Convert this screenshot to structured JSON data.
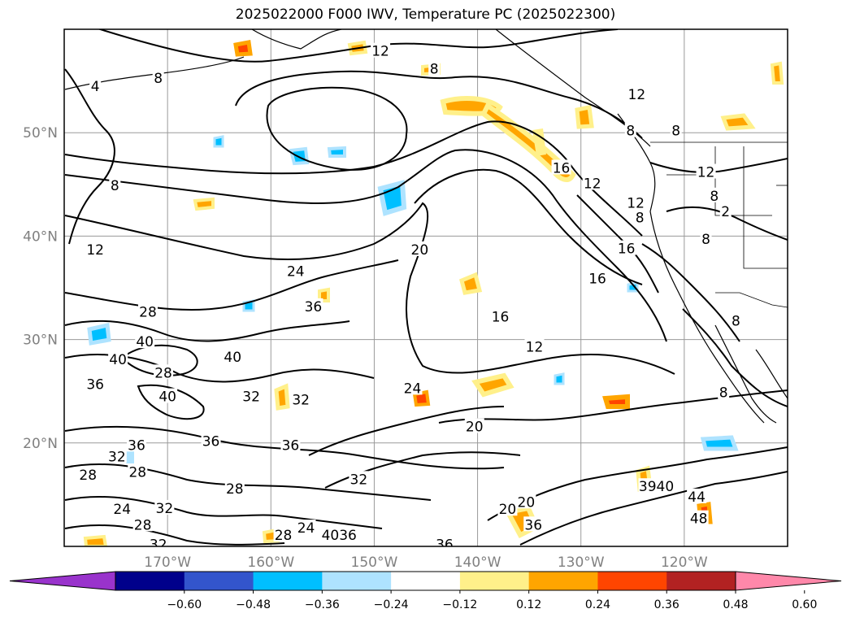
{
  "title": "2025022000 F000 IWV, Temperature PC (2025022300)",
  "map": {
    "lon_range": [
      -180,
      -110
    ],
    "lat_range": [
      10,
      60
    ],
    "lat_labels": [
      {
        "lat": 50,
        "text": "50°N"
      },
      {
        "lat": 40,
        "text": "40°N"
      },
      {
        "lat": 30,
        "text": "30°N"
      },
      {
        "lat": 20,
        "text": "20°N"
      }
    ],
    "lon_labels": [
      {
        "lon": -170,
        "text": "170°W"
      },
      {
        "lon": -160,
        "text": "160°W"
      },
      {
        "lon": -150,
        "text": "150°W"
      },
      {
        "lon": -140,
        "text": "140°W"
      },
      {
        "lon": -130,
        "text": "130°W"
      },
      {
        "lon": -120,
        "text": "120°W"
      }
    ],
    "grid": true,
    "contour_labels": [
      {
        "text": "8",
        "lon": -170.9,
        "lat": 55.3
      },
      {
        "text": "4",
        "lon": -177,
        "lat": 54.5
      },
      {
        "text": "12",
        "lon": -149.4,
        "lat": 57.9
      },
      {
        "text": "8",
        "lon": -144.2,
        "lat": 56.2
      },
      {
        "text": "8",
        "lon": -175.1,
        "lat": 44.9
      },
      {
        "text": "12",
        "lon": -177,
        "lat": 38.7
      },
      {
        "text": "24",
        "lon": -157.6,
        "lat": 36.6
      },
      {
        "text": "20",
        "lon": -145.6,
        "lat": 38.7
      },
      {
        "text": "28",
        "lon": -171.9,
        "lat": 32.7
      },
      {
        "text": "36",
        "lon": -155.9,
        "lat": 33.2
      },
      {
        "text": "40",
        "lon": -172.2,
        "lat": 29.8
      },
      {
        "text": "40",
        "lon": -174.8,
        "lat": 28.1
      },
      {
        "text": "40",
        "lon": -163.7,
        "lat": 28.3
      },
      {
        "text": "28",
        "lon": -170.4,
        "lat": 26.8
      },
      {
        "text": "36",
        "lon": -177,
        "lat": 25.7
      },
      {
        "text": "40",
        "lon": -170,
        "lat": 24.5
      },
      {
        "text": "32",
        "lon": -161.9,
        "lat": 24.5
      },
      {
        "text": "32",
        "lon": -157.1,
        "lat": 24.2
      },
      {
        "text": "24",
        "lon": -146.3,
        "lat": 25.3
      },
      {
        "text": "36",
        "lon": -173,
        "lat": 19.8
      },
      {
        "text": "36",
        "lon": -165.8,
        "lat": 20.2
      },
      {
        "text": "36",
        "lon": -158.1,
        "lat": 19.8
      },
      {
        "text": "32",
        "lon": -174.9,
        "lat": 18.7
      },
      {
        "text": "28",
        "lon": -177.7,
        "lat": 16.9
      },
      {
        "text": "28",
        "lon": -172.9,
        "lat": 17.2
      },
      {
        "text": "28",
        "lon": -163.5,
        "lat": 15.6
      },
      {
        "text": "24",
        "lon": -174.4,
        "lat": 13.6
      },
      {
        "text": "32",
        "lon": -170.3,
        "lat": 13.7
      },
      {
        "text": "28",
        "lon": -172.4,
        "lat": 12.1
      },
      {
        "text": "32",
        "lon": -170.9,
        "lat": 10.2
      },
      {
        "text": "32",
        "lon": -151.5,
        "lat": 16.5
      },
      {
        "text": "24",
        "lon": -156.6,
        "lat": 11.8
      },
      {
        "text": "28",
        "lon": -158.8,
        "lat": 11.1
      },
      {
        "text": "4036",
        "lon": -153.4,
        "lat": 11.1
      },
      {
        "text": "36",
        "lon": -143.2,
        "lat": 10.2
      },
      {
        "text": "20",
        "lon": -140.3,
        "lat": 21.6
      },
      {
        "text": "16",
        "lon": -137.8,
        "lat": 32.2
      },
      {
        "text": "12",
        "lon": -134.5,
        "lat": 29.3
      },
      {
        "text": "16",
        "lon": -131.9,
        "lat": 46.6
      },
      {
        "text": "12",
        "lon": -128.9,
        "lat": 45.1
      },
      {
        "text": "16",
        "lon": -125.6,
        "lat": 38.8
      },
      {
        "text": "16",
        "lon": -128.4,
        "lat": 35.9
      },
      {
        "text": "12",
        "lon": -124.6,
        "lat": 53.7
      },
      {
        "text": "8",
        "lon": -125.2,
        "lat": 50.2
      },
      {
        "text": "12",
        "lon": -124.7,
        "lat": 43.2
      },
      {
        "text": "8",
        "lon": -124.3,
        "lat": 41.8
      },
      {
        "text": "8",
        "lon": -120.8,
        "lat": 50.2
      },
      {
        "text": "12",
        "lon": -117.9,
        "lat": 46.2
      },
      {
        "text": "8",
        "lon": -117.1,
        "lat": 43.9
      },
      {
        "text": "2",
        "lon": -116,
        "lat": 42.4
      },
      {
        "text": "8",
        "lon": -117.9,
        "lat": 39.7
      },
      {
        "text": "8",
        "lon": -115,
        "lat": 31.8
      },
      {
        "text": "8",
        "lon": -116.2,
        "lat": 24.9
      },
      {
        "text": "20",
        "lon": -137.1,
        "lat": 13.6
      },
      {
        "text": "20",
        "lon": -135.3,
        "lat": 14.3
      },
      {
        "text": "36",
        "lon": -134.6,
        "lat": 12.1
      },
      {
        "text": "3940",
        "lon": -122.7,
        "lat": 15.8
      },
      {
        "text": "44",
        "lon": -118.8,
        "lat": 14.8
      },
      {
        "text": "48",
        "lon": -118.6,
        "lat": 12.7
      }
    ]
  },
  "colorbar": {
    "colors": [
      "#9933cc",
      "#00008b",
      "#3355cc",
      "#00bfff",
      "#aee3ff",
      "#ffffff",
      "#fff08a",
      "#ffa500",
      "#ff4500",
      "#b22222",
      "#ff88aa"
    ],
    "under_color": "#9933cc",
    "over_color": "#ff88aa",
    "tick_labels": [
      "−0.60",
      "−0.48",
      "−0.36",
      "−0.24",
      "−0.12",
      "0.12",
      "0.24",
      "0.36",
      "0.48",
      "0.60"
    ]
  }
}
